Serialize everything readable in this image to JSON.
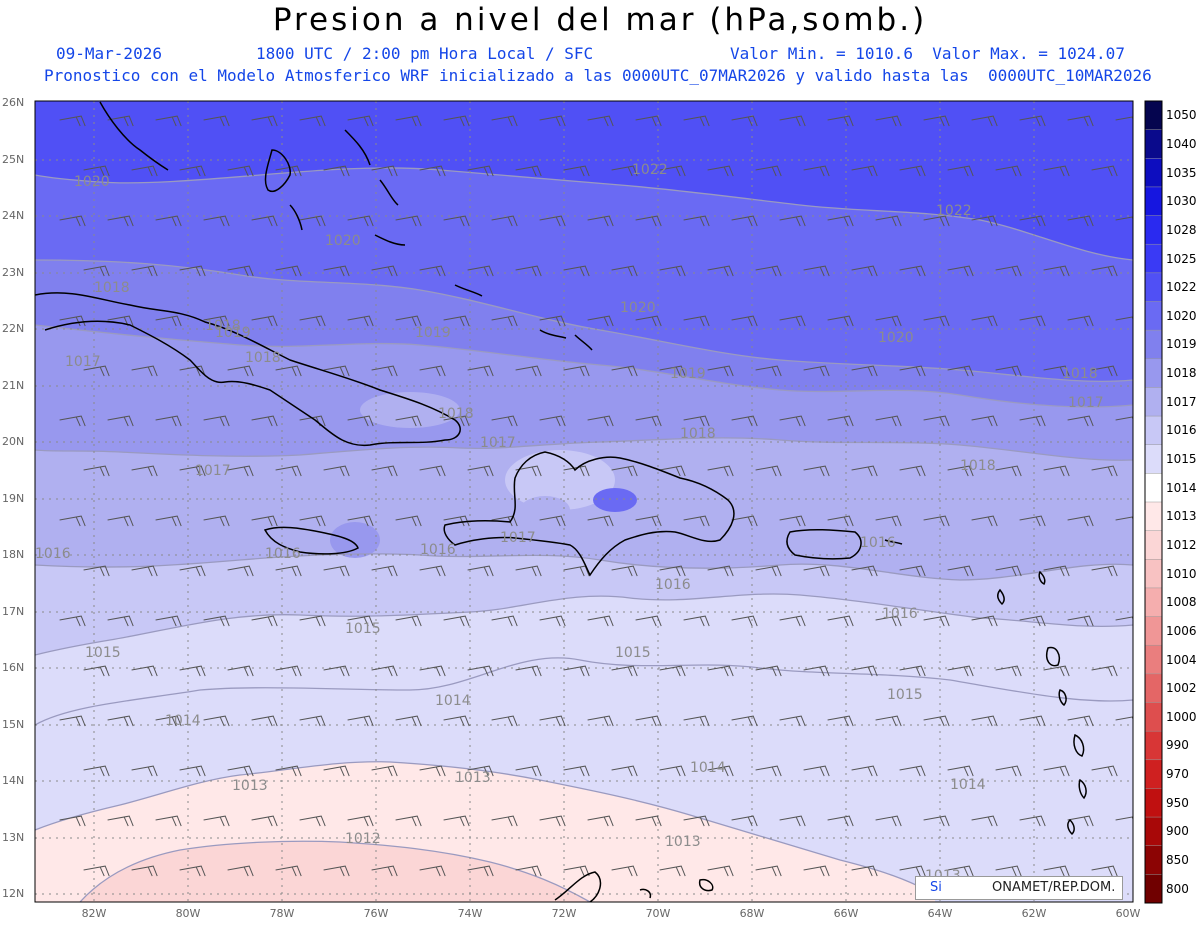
{
  "header": {
    "title": "Presion a nivel del mar (hPa,somb.)",
    "date": "09-Mar-2026",
    "time": "1800 UTC / 2:00 pm Hora Local / SFC",
    "min_max": "Valor Min. = 1010.6  Valor Max. = 1024.07",
    "run_info": "Pronostico con el Modelo Atmosferico WRF inicializado a las 0000UTC_07MAR2026 y valido hasta las  0000UTC_10MAR2026"
  },
  "axes": {
    "lat_labels": [
      "26N",
      "25N",
      "24N",
      "23N",
      "22N",
      "21N",
      "20N",
      "19N",
      "18N",
      "17N",
      "16N",
      "15N",
      "14N",
      "13N",
      "12N"
    ],
    "lon_labels": [
      "82W",
      "80W",
      "78W",
      "76W",
      "74W",
      "72W",
      "70W",
      "68W",
      "66W",
      "64W",
      "62W",
      "60W"
    ]
  },
  "colorbar": {
    "levels": [
      "1050",
      "1040",
      "1035",
      "1030",
      "1028",
      "1025",
      "1022",
      "1020",
      "1019",
      "1018",
      "1017",
      "1016",
      "1015",
      "1014",
      "1013",
      "1012",
      "1010",
      "1008",
      "1006",
      "1004",
      "1002",
      "1000",
      "990",
      "970",
      "950",
      "900",
      "850",
      "800"
    ],
    "colors": [
      "#05054f",
      "#0a0a8c",
      "#0d0dbf",
      "#1616e0",
      "#2a2af0",
      "#3a3af5",
      "#5050f5",
      "#6a6af3",
      "#8080ee",
      "#9898ee",
      "#b0b0f0",
      "#c8c8f6",
      "#dcdcfa",
      "#ffffff",
      "#ffe8e8",
      "#fbd6d6",
      "#f8c2c2",
      "#f5aeae",
      "#f09696",
      "#ea7e7e",
      "#e46666",
      "#de4e4e",
      "#d83636",
      "#cf2020",
      "#c01010",
      "#a80808",
      "#8c0404",
      "#700000"
    ]
  },
  "contours": {
    "labels": [
      "1022",
      "1022",
      "1020",
      "1020",
      "1020",
      "1020",
      "1019",
      "1019",
      "1019",
      "1018",
      "1018",
      "1018",
      "1018",
      "1018",
      "1018",
      "1018",
      "1017",
      "1017",
      "1017",
      "1017",
      "1017",
      "1016",
      "1016",
      "1016",
      "1016",
      "1016",
      "1016",
      "1015",
      "1015",
      "1015",
      "1015",
      "1014",
      "1014",
      "1014",
      "1014",
      "1013",
      "1013",
      "1013",
      "1013",
      "1012"
    ]
  },
  "credit": {
    "left": "Si",
    "right": "ONAMET/REP.DOM."
  }
}
